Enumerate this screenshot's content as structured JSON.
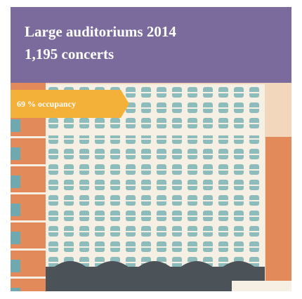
{
  "header": {
    "title": "Large auditoriums 2014",
    "subtitle": "1,195 concerts"
  },
  "badge": {
    "label": "69 % occupancy"
  }
}
